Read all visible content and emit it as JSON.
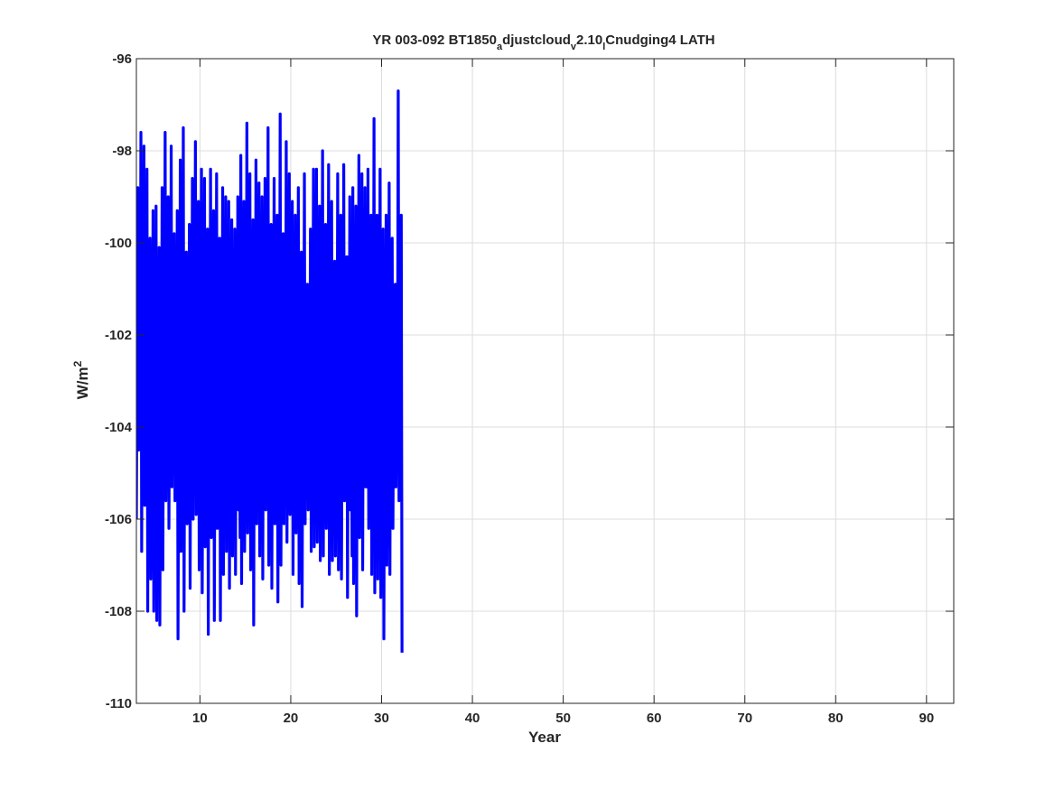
{
  "chart_data": {
    "type": "line",
    "title": {
      "parts": [
        {
          "text": "YR 003-092 BT1850",
          "shift": "none"
        },
        {
          "text": "a",
          "shift": "sub"
        },
        {
          "text": "djustcloud",
          "shift": "none"
        },
        {
          "text": "v",
          "shift": "sub"
        },
        {
          "text": "2.10",
          "shift": "none"
        },
        {
          "text": "l",
          "shift": "sub"
        },
        {
          "text": "Cnudging4 LATH",
          "shift": "none"
        }
      ]
    },
    "xlabel": "Year",
    "ylabel": {
      "base": "W/m",
      "sup": "2"
    },
    "xlim": [
      3,
      93
    ],
    "ylim": [
      -110,
      -96
    ],
    "xticks": [
      10,
      20,
      30,
      40,
      50,
      60,
      70,
      80,
      90
    ],
    "yticks": [
      -110,
      -108,
      -106,
      -104,
      -102,
      -100,
      -98,
      -96
    ],
    "grid": true,
    "series": [
      {
        "color": "#0000ff",
        "x_start": 3.0,
        "x_step": 0.083333,
        "values": [
          -106.0,
          -101.6,
          -98.8,
          -104.5,
          -101.8,
          -103.1,
          -97.6,
          -106.7,
          -100.4,
          -103.7,
          -97.9,
          -105.7,
          -101.2,
          -103.1,
          -98.4,
          -108.0,
          -100.7,
          -103.9,
          -99.9,
          -107.3,
          -103.6,
          -104.5,
          -99.3,
          -108.0,
          -103.4,
          -105.5,
          -99.2,
          -108.2,
          -101.3,
          -105.9,
          -100.1,
          -108.3,
          -103.1,
          -104.5,
          -98.8,
          -107.1,
          -101.5,
          -103.2,
          -97.6,
          -105.6,
          -101.2,
          -104.5,
          -99.0,
          -106.2,
          -102.5,
          -104.6,
          -97.9,
          -105.3,
          -101.4,
          -104.5,
          -99.8,
          -105.6,
          -101.9,
          -105.4,
          -99.3,
          -108.6,
          -103.7,
          -105.0,
          -98.2,
          -106.7,
          -102.0,
          -104.6,
          -97.5,
          -108.0,
          -102.6,
          -105.3,
          -100.2,
          -106.1,
          -103.1,
          -104.3,
          -99.6,
          -107.5,
          -102.5,
          -104.0,
          -98.6,
          -106.0,
          -101.9,
          -103.5,
          -97.8,
          -105.9,
          -102.3,
          -104.7,
          -99.1,
          -107.1,
          -101.9,
          -103.9,
          -98.4,
          -107.6,
          -102.4,
          -104.2,
          -98.6,
          -106.6,
          -103.0,
          -105.5,
          -99.7,
          -108.5,
          -102.2,
          -104.5,
          -98.4,
          -106.4,
          -101.0,
          -105.3,
          -99.3,
          -108.2,
          -102.5,
          -103.9,
          -98.5,
          -106.2,
          -101.5,
          -105.3,
          -99.9,
          -108.2,
          -102.4,
          -104.6,
          -98.8,
          -107.2,
          -101.0,
          -105.1,
          -99.0,
          -106.7,
          -102.3,
          -104.9,
          -99.1,
          -107.5,
          -101.5,
          -104.2,
          -99.5,
          -106.8,
          -102.0,
          -104.9,
          -99.7,
          -107.2,
          -101.4,
          -104.0,
          -99.0,
          -105.8,
          -103.0,
          -106.4,
          -98.1,
          -107.4,
          -100.3,
          -103.8,
          -99.1,
          -106.7,
          -102.2,
          -104.9,
          -97.4,
          -106.3,
          -102.0,
          -104.7,
          -98.5,
          -107.1,
          -102.6,
          -105.5,
          -99.5,
          -108.3,
          -102.2,
          -104.9,
          -98.2,
          -106.1,
          -101.4,
          -103.6,
          -98.7,
          -106.8,
          -101.4,
          -103.3,
          -99.0,
          -107.3,
          -101.3,
          -103.6,
          -98.6,
          -105.8,
          -102.6,
          -104.9,
          -97.5,
          -107.0,
          -101.6,
          -103.4,
          -99.6,
          -107.5,
          -101.2,
          -103.7,
          -98.6,
          -106.1,
          -101.3,
          -105.6,
          -99.4,
          -107.8,
          -101.8,
          -103.9,
          -97.2,
          -107.0,
          -101.7,
          -104.7,
          -99.8,
          -106.1,
          -101.1,
          -104.4,
          -97.8,
          -106.5,
          -102.3,
          -104.9,
          -98.5,
          -105.9,
          -102.6,
          -103.8,
          -99.1,
          -107.2,
          -101.3,
          -104.2,
          -99.4,
          -106.3,
          -101.5,
          -104.3,
          -98.8,
          -107.4,
          -102.5,
          -104.3,
          -100.2,
          -107.9,
          -102.5,
          -104.3,
          -98.5,
          -106.1,
          -102.0,
          -104.6,
          -100.9,
          -105.8,
          -101.7,
          -104.2,
          -99.7,
          -106.7,
          -100.8,
          -103.6,
          -98.4,
          -106.6,
          -102.3,
          -103.9,
          -98.4,
          -106.5,
          -101.6,
          -104.9,
          -99.2,
          -106.9,
          -101.7,
          -104.1,
          -98.0,
          -106.8,
          -101.6,
          -104.7,
          -99.6,
          -106.2,
          -102.3,
          -104.2,
          -98.3,
          -107.2,
          -101.8,
          -104.0,
          -99.1,
          -106.9,
          -101.1,
          -105.3,
          -100.4,
          -106.8,
          -102.9,
          -104.5,
          -98.5,
          -107.1,
          -102.6,
          -104.9,
          -99.4,
          -107.3,
          -102.7,
          -105.1,
          -98.3,
          -105.6,
          -100.7,
          -105.3,
          -100.3,
          -107.7,
          -102.7,
          -104.7,
          -99.0,
          -105.8,
          -102.7,
          -106.8,
          -98.8,
          -107.4,
          -103.1,
          -104.4,
          -99.2,
          -108.1,
          -102.0,
          -104.9,
          -98.1,
          -106.4,
          -102.6,
          -105.8,
          -98.5,
          -107.1,
          -101.5,
          -104.6,
          -98.8,
          -105.3,
          -102.4,
          -105.3,
          -98.4,
          -106.2,
          -101.0,
          -104.2,
          -99.4,
          -107.2,
          -101.5,
          -104.0,
          -97.3,
          -107.6,
          -101.9,
          -104.8,
          -99.4,
          -107.3,
          -101.2,
          -103.8,
          -98.4,
          -107.7,
          -102.0,
          -104.5,
          -99.7,
          -108.6,
          -102.7,
          -104.5,
          -99.4,
          -107.0,
          -102.8,
          -104.8,
          -98.7,
          -107.2,
          -101.4,
          -104.2,
          -99.9,
          -106.2,
          -102.3,
          -105.3,
          -100.9,
          -105.3,
          -102.2,
          -103.3,
          -96.7,
          -105.6,
          -102.1,
          -103.9,
          -99.4,
          -108.9
        ]
      }
    ]
  }
}
